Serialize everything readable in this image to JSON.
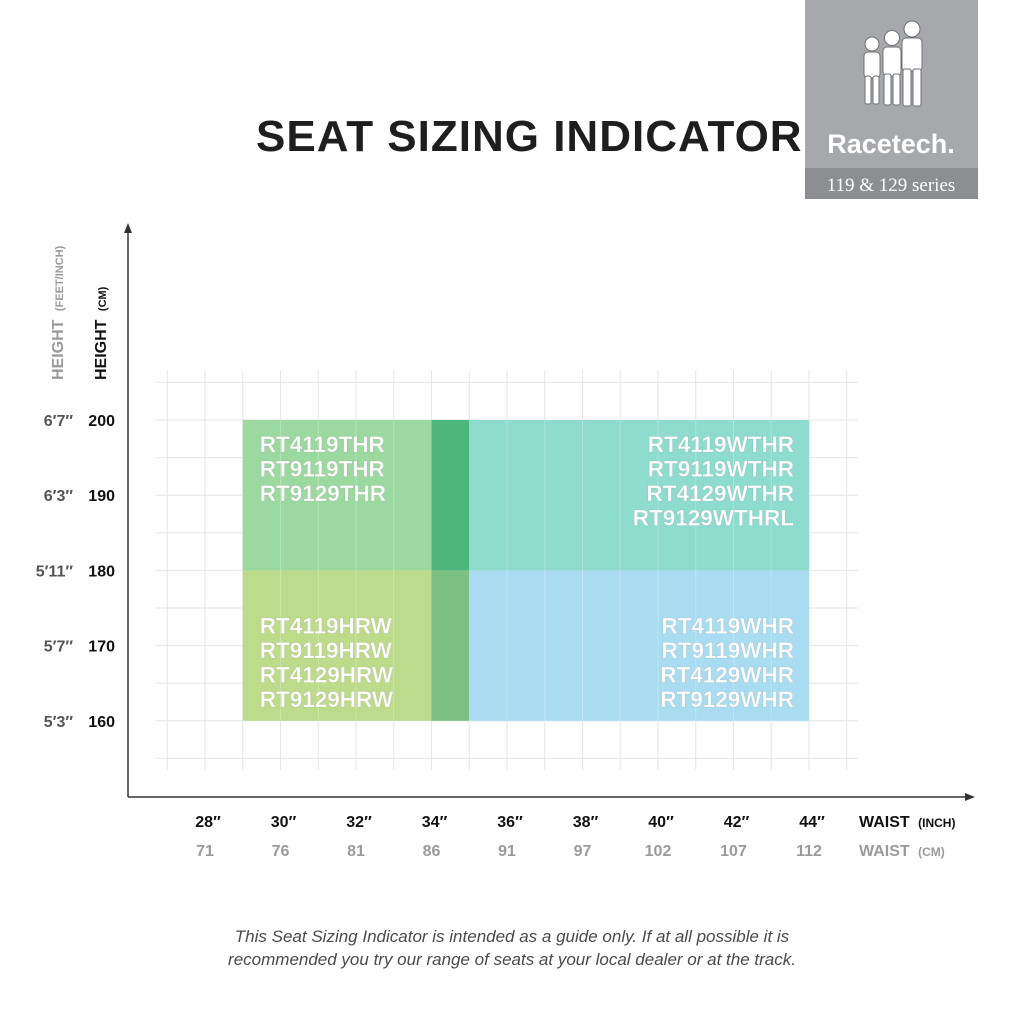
{
  "title": "SEAT SIZING INDICATOR",
  "brand": {
    "logo_text": "Racetech.",
    "series_label": "119 & 129 series",
    "colors": {
      "panel": "#a7a8ab",
      "band": "#8d8e91",
      "text": "#ffffff"
    }
  },
  "disclaimer": {
    "line1": "This Seat Sizing Indicator is intended as a guide only. If at all possible it is",
    "line2": "recommended you try our range of seats at your local dealer or at the track."
  },
  "chart_data": {
    "type": "heatmap",
    "title": "SEAT SIZING INDICATOR",
    "x_axis": {
      "label_primary": "WAIST",
      "label_primary_unit": "(INCH)",
      "label_secondary": "WAIST",
      "label_secondary_unit": "(CM)",
      "ticks_inch": [
        "28″",
        "30″",
        "32″",
        "34″",
        "36″",
        "38″",
        "40″",
        "42″",
        "44″"
      ],
      "ticks_cm": [
        "71",
        "76",
        "81",
        "86",
        "91",
        "97",
        "102",
        "107",
        "112"
      ],
      "tick_values_inch": [
        28,
        30,
        32,
        34,
        36,
        38,
        40,
        42,
        44
      ],
      "range_inch": [
        26,
        46
      ]
    },
    "y_axis": {
      "label_primary": "HEIGHT",
      "label_primary_unit": "(CM)",
      "label_secondary": "HEIGHT",
      "label_secondary_unit": "(FEET/INCH)",
      "ticks_cm": [
        "200",
        "190",
        "180",
        "170",
        "160"
      ],
      "ticks_feet": [
        "6′7″",
        "6′3″",
        "5′11″",
        "5′7″",
        "5′3″"
      ],
      "tick_values_cm": [
        200,
        190,
        180,
        170,
        160
      ],
      "range_cm": [
        150,
        211
      ]
    },
    "grid": true,
    "regions": [
      {
        "x": [
          29,
          34
        ],
        "y": [
          180,
          200
        ],
        "color": "#9cd9a0",
        "labels": [
          "RT4119THR",
          "RT9119THR",
          "RT9129THR"
        ],
        "align": "left",
        "label_anchor": "top"
      },
      {
        "x": [
          34,
          35
        ],
        "y": [
          180,
          200
        ],
        "color": "#4eb87c",
        "labels": []
      },
      {
        "x": [
          35,
          44
        ],
        "y": [
          180,
          200
        ],
        "color": "#8ddccd",
        "labels": [
          "RT4119WTHR",
          "RT9119WTHR",
          "RT4129WTHR",
          "RT9129WTHRL"
        ],
        "align": "right",
        "label_anchor": "top"
      },
      {
        "x": [
          29,
          34
        ],
        "y": [
          160,
          180
        ],
        "color": "#bcdc8c",
        "labels": [
          "RT4119HRW",
          "RT9119HRW",
          "RT4129HRW",
          "RT9129HRW"
        ],
        "align": "left",
        "label_anchor": "bottom"
      },
      {
        "x": [
          34,
          35
        ],
        "y": [
          160,
          180
        ],
        "color": "#7cc084",
        "labels": []
      },
      {
        "x": [
          35,
          44
        ],
        "y": [
          160,
          180
        ],
        "color": "#a9dcf1",
        "labels": [
          "RT4119WHR",
          "RT9119WHR",
          "RT4129WHR",
          "RT9129WHR"
        ],
        "align": "right",
        "label_anchor": "bottom"
      }
    ]
  }
}
